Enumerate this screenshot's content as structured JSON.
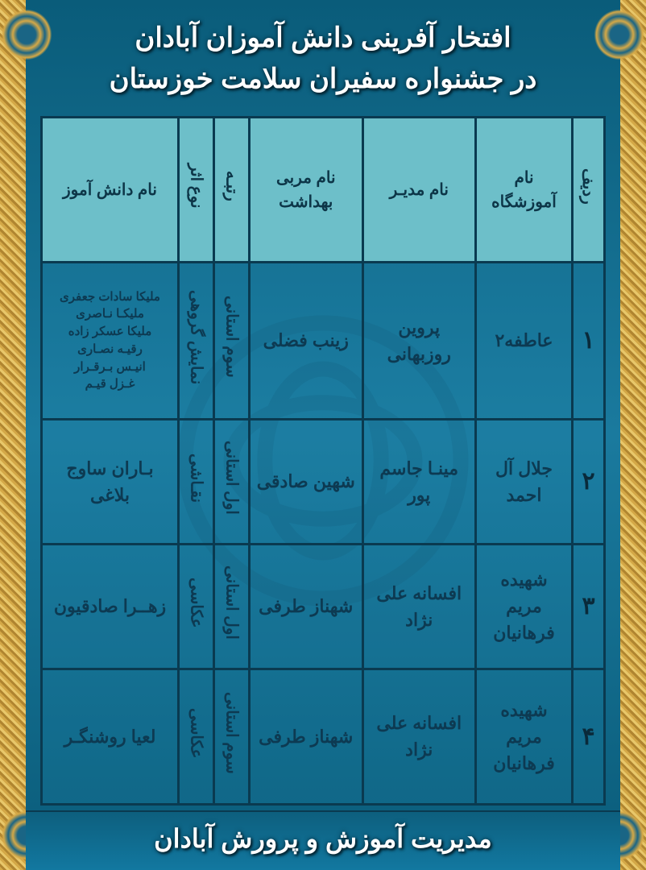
{
  "title": {
    "line1": "افتخار آفرینی دانش آموزان آبادان",
    "line2": "در جشنواره سفیران سلامت خوزستان"
  },
  "footer": "مدیریت آموزش و پرورش آبادان",
  "columns": {
    "row": "ردیف",
    "school": "نام آموزشگاه",
    "principal": "نام مدیـر",
    "health_coach": "نام مربی بهداشت",
    "rank": "رتبـه",
    "work_type": "نوع اثر",
    "student": "نام دانش آموز"
  },
  "rows": [
    {
      "num": "۱",
      "school": "عاطفه۲",
      "principal": "پروین روزبهانی",
      "health_coach": "زینب فضلی",
      "rank": "سوم استانی",
      "work_type": "نمایش گروهی",
      "students": [
        "ملیکا سادات جعفری",
        "ملیکـا نـاصری",
        "ملیکا عسکر زاده",
        "رقیـه نصـاری",
        "انیـس بـرقـرار",
        "غـزل قیـم"
      ]
    },
    {
      "num": "۲",
      "school": "جلال آل احمد",
      "principal": "مینـا جاسم پور",
      "health_coach": "شهین صادقی",
      "rank": "اول استانی",
      "work_type": "نقـاشی",
      "students": [
        "بـاران ساوج بلاغی"
      ]
    },
    {
      "num": "۳",
      "school": "شهیده مریم فرهانیان",
      "principal": "افسانه علی نژاد",
      "health_coach": "شهناز طرفی",
      "rank": "اول استانی",
      "work_type": "عکاسی",
      "students": [
        "زهــرا صادقیون"
      ]
    },
    {
      "num": "۴",
      "school": "شهیده مریم فرهانیان",
      "principal": "افسانه علی نژاد",
      "health_coach": "شهناز طرفی",
      "rank": "سوم استانی",
      "work_type": "عکاسی",
      "students": [
        "لعیا روشنگـر"
      ]
    }
  ],
  "style": {
    "bg_gradient": [
      "#0a5c7a",
      "#1a7a9e",
      "#0a5c7a"
    ],
    "border_gold": [
      "#d4a847",
      "#b08530",
      "#e8c76a"
    ],
    "header_bg": "#6dbfc9",
    "header_text": "#0d3648",
    "body_text": "#0d3a52",
    "cell_border": "#0a3a50",
    "title_color": "#ffffff",
    "title_fontsize": 34,
    "footer_fontsize": 32,
    "header_fontsize": 20,
    "body_fontsize": 22
  }
}
